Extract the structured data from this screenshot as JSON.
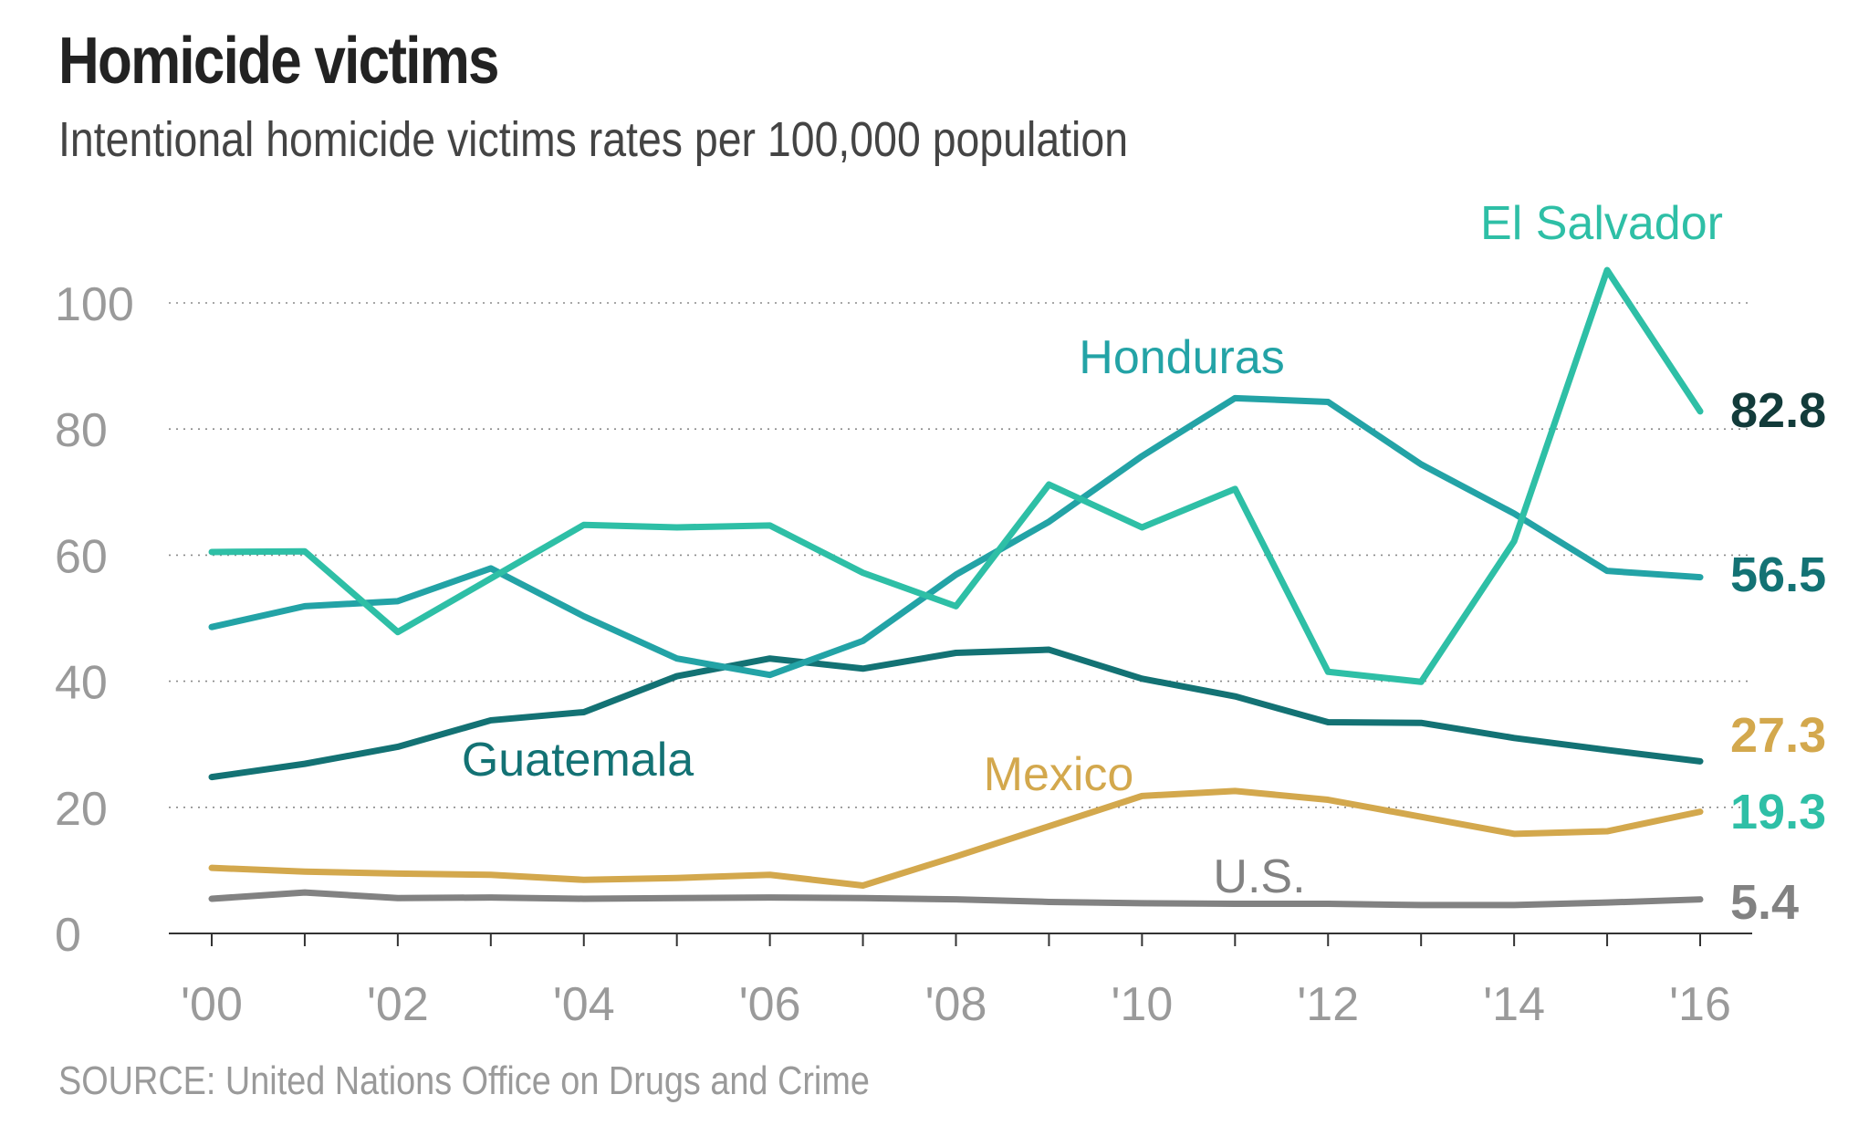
{
  "header": {
    "title": "Homicide victims",
    "subtitle": "Intentional homicide victims rates per 100,000 population"
  },
  "footer": {
    "source": "SOURCE: United Nations Office on Drugs and Crime"
  },
  "chart_data": {
    "type": "line",
    "title": "Homicide victims",
    "subtitle": "Intentional homicide victims rates per 100,000 population",
    "xlabel": "",
    "ylabel": "",
    "x": [
      2000,
      2001,
      2002,
      2003,
      2004,
      2005,
      2006,
      2007,
      2008,
      2009,
      2010,
      2011,
      2012,
      2013,
      2014,
      2015,
      2016
    ],
    "x_tick_labels": [
      "'00",
      "'02",
      "'04",
      "'06",
      "'08",
      "'10",
      "'12",
      "'14",
      "'16"
    ],
    "x_tick_values": [
      2000,
      2002,
      2004,
      2006,
      2008,
      2010,
      2012,
      2014,
      2016
    ],
    "y_ticks": [
      0,
      20,
      40,
      60,
      80,
      100
    ],
    "ylim": [
      0,
      110
    ],
    "grid": "dotted horizontal",
    "series": [
      {
        "name": "El Salvador",
        "color": "#2ebfa6",
        "end_label": "82.8",
        "values": [
          60.5,
          60.6,
          47.8,
          56.3,
          64.8,
          64.4,
          64.7,
          57.2,
          51.9,
          71.2,
          64.4,
          70.5,
          41.5,
          39.9,
          62.2,
          105.2,
          82.8
        ]
      },
      {
        "name": "Honduras",
        "color": "#23a3a6",
        "end_label": "56.5",
        "values": [
          48.6,
          51.9,
          52.7,
          57.9,
          50.3,
          43.6,
          41.0,
          46.4,
          56.9,
          65.3,
          75.7,
          84.9,
          84.3,
          74.4,
          66.6,
          57.5,
          56.5
        ]
      },
      {
        "name": "Guatemala",
        "color": "#137274",
        "end_label": "27.3",
        "values": [
          24.8,
          26.9,
          29.6,
          33.8,
          35.1,
          40.8,
          43.6,
          42.0,
          44.5,
          45.0,
          40.4,
          37.6,
          33.5,
          33.4,
          31.0,
          29.1,
          27.3
        ]
      },
      {
        "name": "Mexico",
        "color": "#d3a84d",
        "end_label": "19.3",
        "values": [
          10.4,
          9.8,
          9.5,
          9.3,
          8.5,
          8.8,
          9.3,
          7.6,
          12.2,
          17.0,
          21.8,
          22.6,
          21.2,
          18.5,
          15.8,
          16.2,
          19.3
        ]
      },
      {
        "name": "U.S.",
        "color": "#828282",
        "end_label": "5.4",
        "values": [
          5.5,
          6.5,
          5.6,
          5.7,
          5.5,
          5.6,
          5.7,
          5.6,
          5.4,
          5.0,
          4.8,
          4.7,
          4.7,
          4.5,
          4.5,
          4.9,
          5.4
        ]
      }
    ],
    "end_label_colors": [
      "#123b3a",
      "#137274",
      "#d3a84d",
      "#2ebfa6",
      "#828282"
    ]
  }
}
